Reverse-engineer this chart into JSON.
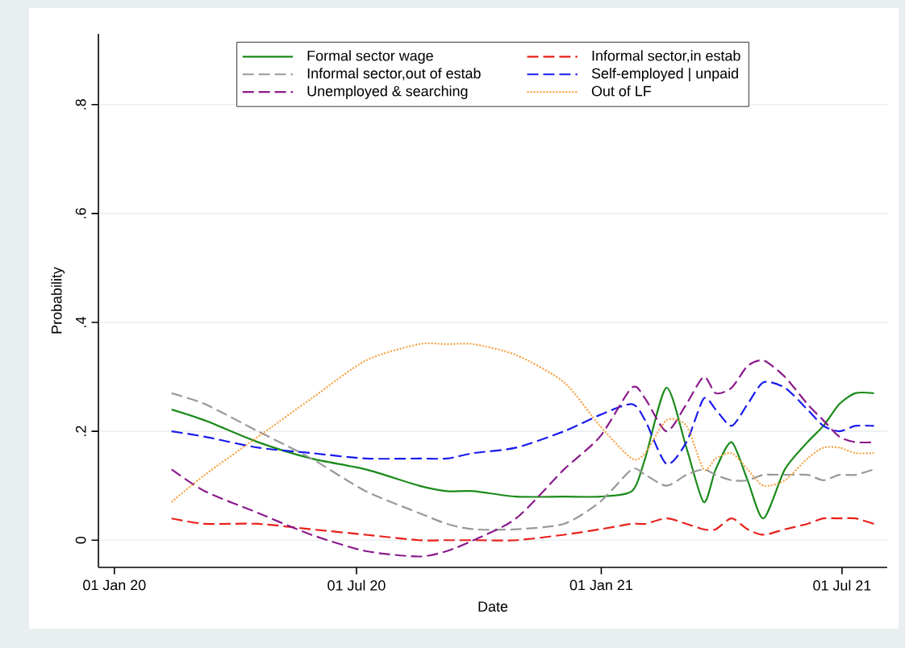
{
  "chart_data": {
    "type": "line",
    "xlabel": "Date",
    "ylabel": "Probability",
    "x": [
      "2020-02-13",
      "2020-03-09",
      "2020-04-18",
      "2020-05-28",
      "2020-07-08",
      "2020-08-17",
      "2020-09-07",
      "2020-09-27",
      "2020-10-29",
      "2020-12-04",
      "2020-12-31",
      "2021-01-24",
      "2021-02-03",
      "2021-02-19",
      "2021-03-06",
      "2021-03-19",
      "2021-03-28",
      "2021-04-09",
      "2021-04-21",
      "2021-05-03",
      "2021-05-19",
      "2021-06-05",
      "2021-06-17",
      "2021-06-29",
      "2021-07-11",
      "2021-07-25"
    ],
    "series": [
      {
        "name": "Formal sector wage",
        "color": "#1a8a1a",
        "line_style": "solid",
        "values": [
          0.24,
          0.22,
          0.18,
          0.15,
          0.13,
          0.1,
          0.09,
          0.09,
          0.08,
          0.08,
          0.08,
          0.09,
          0.15,
          0.28,
          0.17,
          0.07,
          0.13,
          0.18,
          0.11,
          0.04,
          0.13,
          0.18,
          0.21,
          0.25,
          0.27,
          0.27
        ]
      },
      {
        "name": "Informal sector,in estab",
        "color": "#e8201a",
        "line_style": "dashed",
        "values": [
          0.04,
          0.03,
          0.03,
          0.02,
          0.01,
          0.0,
          0.0,
          0.0,
          0.0,
          0.01,
          0.02,
          0.03,
          0.03,
          0.04,
          0.03,
          0.02,
          0.02,
          0.04,
          0.02,
          0.01,
          0.02,
          0.03,
          0.04,
          0.04,
          0.04,
          0.03
        ]
      },
      {
        "name": "Informal sector,out of estab",
        "color": "#999999",
        "line_style": "dashed",
        "values": [
          0.27,
          0.25,
          0.2,
          0.15,
          0.09,
          0.05,
          0.03,
          0.02,
          0.02,
          0.03,
          0.07,
          0.13,
          0.12,
          0.1,
          0.12,
          0.13,
          0.12,
          0.11,
          0.11,
          0.12,
          0.12,
          0.12,
          0.11,
          0.12,
          0.12,
          0.13
        ]
      },
      {
        "name": "Self-employed | unpaid",
        "color": "#1a1aee",
        "line_style": "dashed",
        "values": [
          0.2,
          0.19,
          0.17,
          0.16,
          0.15,
          0.15,
          0.15,
          0.16,
          0.17,
          0.2,
          0.23,
          0.25,
          0.22,
          0.14,
          0.18,
          0.26,
          0.24,
          0.21,
          0.25,
          0.29,
          0.28,
          0.24,
          0.21,
          0.2,
          0.21,
          0.21
        ]
      },
      {
        "name": "Unemployed & searching",
        "color": "#8b1a8b",
        "line_style": "dashed",
        "values": [
          0.13,
          0.09,
          0.05,
          0.01,
          -0.02,
          -0.03,
          -0.02,
          0.0,
          0.04,
          0.13,
          0.19,
          0.28,
          0.26,
          0.2,
          0.25,
          0.3,
          0.27,
          0.28,
          0.32,
          0.33,
          0.3,
          0.25,
          0.22,
          0.19,
          0.18,
          0.18
        ]
      },
      {
        "name": "Out of LF",
        "color": "#f5a040",
        "line_style": "dotted",
        "values": [
          0.07,
          0.12,
          0.19,
          0.26,
          0.33,
          0.36,
          0.36,
          0.36,
          0.34,
          0.29,
          0.21,
          0.15,
          0.16,
          0.22,
          0.21,
          0.13,
          0.15,
          0.16,
          0.13,
          0.1,
          0.11,
          0.15,
          0.17,
          0.17,
          0.16,
          0.16
        ]
      }
    ],
    "xlim": [
      "2019-12-20",
      "2021-08-04"
    ],
    "xticks": [
      {
        "value": "2020-01-01",
        "label": "01 Jan 20"
      },
      {
        "value": "2020-07-01",
        "label": "01 Jul 20"
      },
      {
        "value": "2021-01-01",
        "label": "01 Jan 21"
      },
      {
        "value": "2021-07-01",
        "label": "01 Jul 21"
      }
    ],
    "ylim": [
      -0.05,
      0.93
    ],
    "yticks": [
      0,
      {
        "value": 0.2,
        "label": ".2"
      },
      {
        "value": 0.4,
        "label": ".4"
      },
      {
        "value": 0.6,
        "label": ".6"
      },
      {
        "value": 0.8,
        "label": ".8"
      }
    ],
    "grid": "y",
    "legend": "top"
  }
}
